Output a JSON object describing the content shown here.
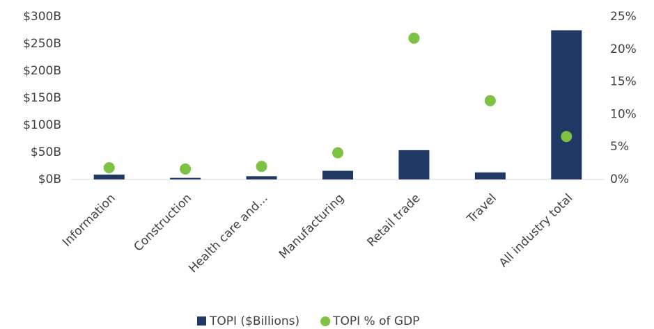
{
  "chart_data": {
    "type": "bar",
    "categories": [
      "Information",
      "Construction",
      "Health care and...",
      "Manufacturing",
      "Retail trade",
      "Travel",
      "All industry total"
    ],
    "series": [
      {
        "name": "TOPI ($Billions)",
        "type": "bar",
        "color": "#1f3864",
        "values": [
          9,
          3,
          6,
          16,
          54,
          13,
          275
        ]
      },
      {
        "name": "TOPI % of GDP",
        "type": "scatter",
        "axis": "y2",
        "color": "#7dc242",
        "values": [
          1.8,
          1.6,
          2.0,
          4.1,
          21.7,
          12.1,
          6.6
        ]
      }
    ],
    "ylim": [
      0,
      300
    ],
    "yticks": [
      {
        "value": 0,
        "label": "$0B"
      },
      {
        "value": 50,
        "label": "$50B"
      },
      {
        "value": 100,
        "label": "$100B"
      },
      {
        "value": 150,
        "label": "$150B"
      },
      {
        "value": 200,
        "label": "$200B"
      },
      {
        "value": 250,
        "label": "$250B"
      },
      {
        "value": 300,
        "label": "$300B"
      }
    ],
    "y2lim": [
      0,
      25
    ],
    "y2ticks": [
      {
        "value": 0,
        "label": "0%"
      },
      {
        "value": 5,
        "label": "5%"
      },
      {
        "value": 10,
        "label": "10%"
      },
      {
        "value": 15,
        "label": "15%"
      },
      {
        "value": 20,
        "label": "20%"
      },
      {
        "value": 25,
        "label": "25%"
      }
    ],
    "legend": "bottom"
  }
}
